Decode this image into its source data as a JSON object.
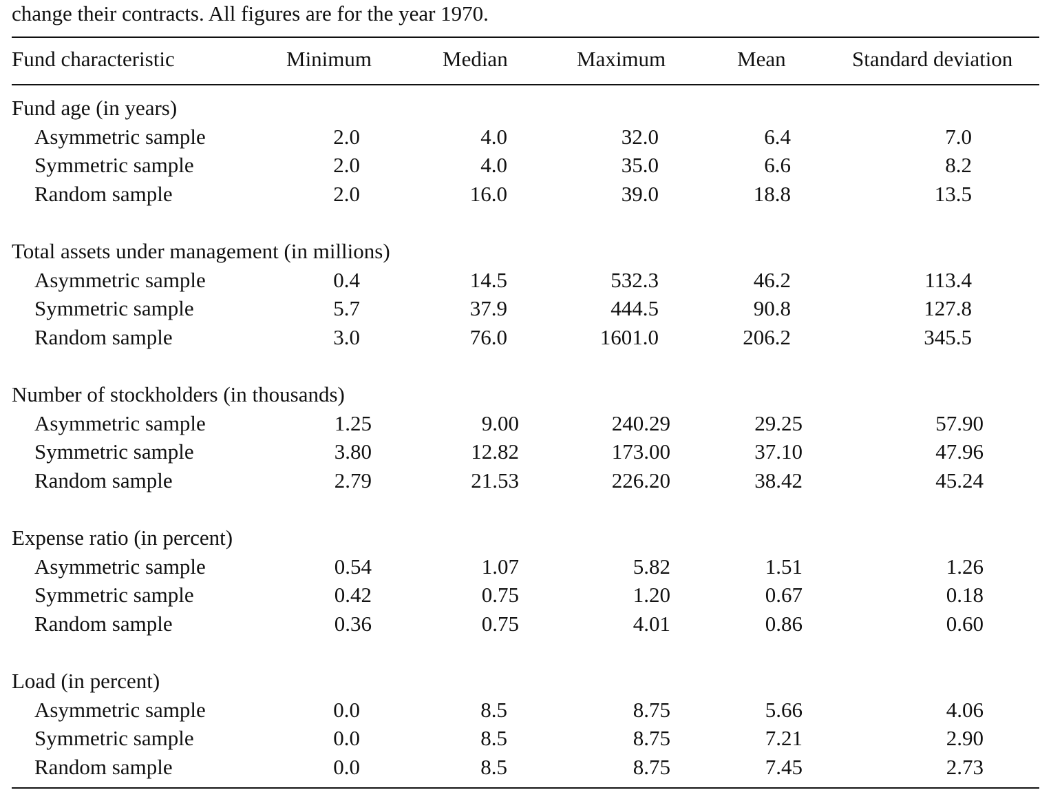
{
  "caption": "change their contracts. All figures are for the year 1970.",
  "table": {
    "headers": [
      "Fund characteristic",
      "Minimum",
      "Median",
      "Maximum",
      "Mean",
      "Standard deviation"
    ],
    "groups": [
      {
        "title": "Fund age (in years)",
        "rows": [
          {
            "label": "Asymmetric sample",
            "values": [
              "2.0",
              "4.0",
              "32.0",
              "6.4",
              "7.0"
            ]
          },
          {
            "label": "Symmetric sample",
            "values": [
              "2.0",
              "4.0",
              "35.0",
              "6.6",
              "8.2"
            ]
          },
          {
            "label": "Random sample",
            "values": [
              "2.0",
              "16.0",
              "39.0",
              "18.8",
              "13.5"
            ]
          }
        ]
      },
      {
        "title": "Total assets under management (in millions)",
        "rows": [
          {
            "label": "Asymmetric sample",
            "values": [
              "0.4",
              "14.5",
              "532.3",
              "46.2",
              "113.4"
            ]
          },
          {
            "label": "Symmetric sample",
            "values": [
              "5.7",
              "37.9",
              "444.5",
              "90.8",
              "127.8"
            ]
          },
          {
            "label": "Random sample",
            "values": [
              "3.0",
              "76.0",
              "1601.0",
              "206.2",
              "345.5"
            ]
          }
        ]
      },
      {
        "title": "Number of stockholders (in thousands)",
        "rows": [
          {
            "label": "Asymmetric sample",
            "values": [
              "1.25",
              "9.00",
              "240.29",
              "29.25",
              "57.90"
            ]
          },
          {
            "label": "Symmetric sample",
            "values": [
              "3.80",
              "12.82",
              "173.00",
              "37.10",
              "47.96"
            ]
          },
          {
            "label": "Random sample",
            "values": [
              "2.79",
              "21.53",
              "226.20",
              "38.42",
              "45.24"
            ]
          }
        ]
      },
      {
        "title": "Expense ratio (in percent)",
        "rows": [
          {
            "label": "Asymmetric sample",
            "values": [
              "0.54",
              "1.07",
              "5.82",
              "1.51",
              "1.26"
            ]
          },
          {
            "label": "Symmetric sample",
            "values": [
              "0.42",
              "0.75",
              "1.20",
              "0.67",
              "0.18"
            ]
          },
          {
            "label": "Random sample",
            "values": [
              "0.36",
              "0.75",
              "4.01",
              "0.86",
              "0.60"
            ]
          }
        ]
      },
      {
        "title": "Load (in percent)",
        "rows": [
          {
            "label": "Asymmetric sample",
            "values": [
              "0.0",
              "8.5",
              "8.75",
              "5.66",
              "4.06"
            ]
          },
          {
            "label": "Symmetric sample",
            "values": [
              "0.0",
              "8.5",
              "8.75",
              "7.21",
              "2.90"
            ]
          },
          {
            "label": "Random sample",
            "values": [
              "0.0",
              "8.5",
              "8.75",
              "7.45",
              "2.73"
            ]
          }
        ]
      }
    ]
  }
}
